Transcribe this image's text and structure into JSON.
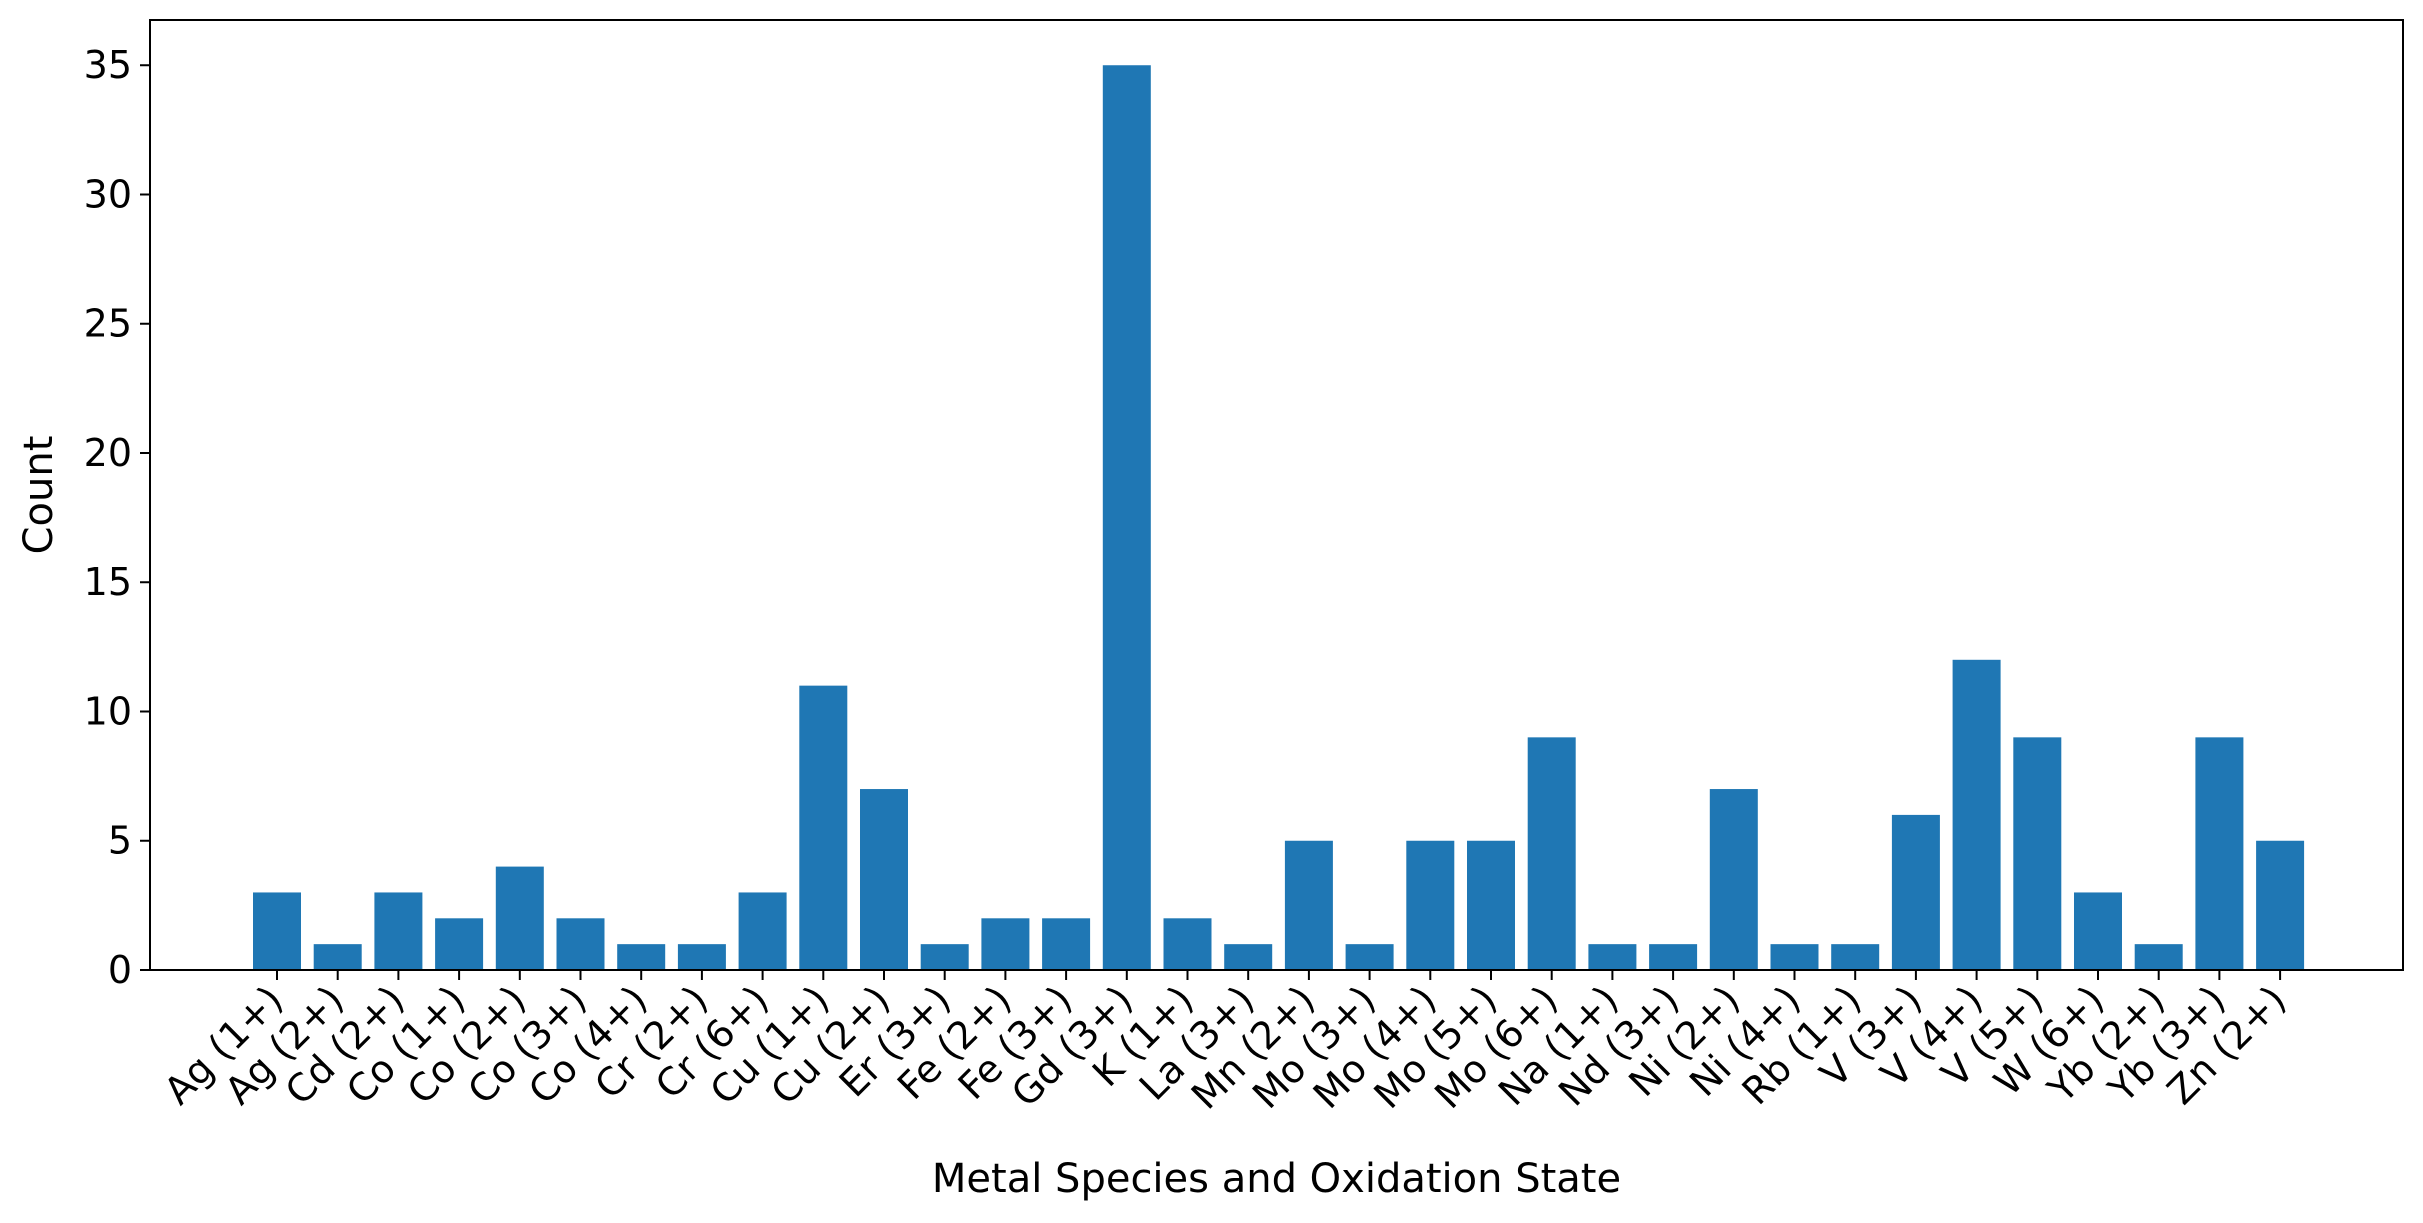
{
  "chart_data": {
    "type": "bar",
    "title": "",
    "xlabel": "Metal Species and Oxidation State",
    "ylabel": "Count",
    "ylim": [
      0,
      36.75
    ],
    "yticks": [
      0,
      5,
      10,
      15,
      20,
      25,
      30,
      35
    ],
    "grid": false,
    "bar_color": "#1f77b4",
    "categories": [
      "Ag (1+)",
      "Ag (2+)",
      "Cd (2+)",
      "Co (1+)",
      "Co (2+)",
      "Co (3+)",
      "Co (4+)",
      "Cr (2+)",
      "Cr (6+)",
      "Cu (1+)",
      "Cu (2+)",
      "Er (3+)",
      "Fe (2+)",
      "Fe (3+)",
      "Gd (3+)",
      "K (1+)",
      "La (3+)",
      "Mn (2+)",
      "Mo (3+)",
      "Mo (4+)",
      "Mo (5+)",
      "Mo (6+)",
      "Na (1+)",
      "Nd (3+)",
      "Ni (2+)",
      "Ni (4+)",
      "Rb (1+)",
      "V (3+)",
      "V (4+)",
      "V (5+)",
      "W (6+)",
      "Yb (2+)",
      "Yb (3+)",
      "Zn (2+)"
    ],
    "values": [
      3,
      1,
      3,
      2,
      4,
      2,
      1,
      1,
      3,
      11,
      7,
      1,
      2,
      2,
      35,
      2,
      1,
      5,
      1,
      5,
      5,
      9,
      1,
      1,
      7,
      1,
      1,
      6,
      12,
      9,
      3,
      1,
      9,
      5
    ]
  }
}
